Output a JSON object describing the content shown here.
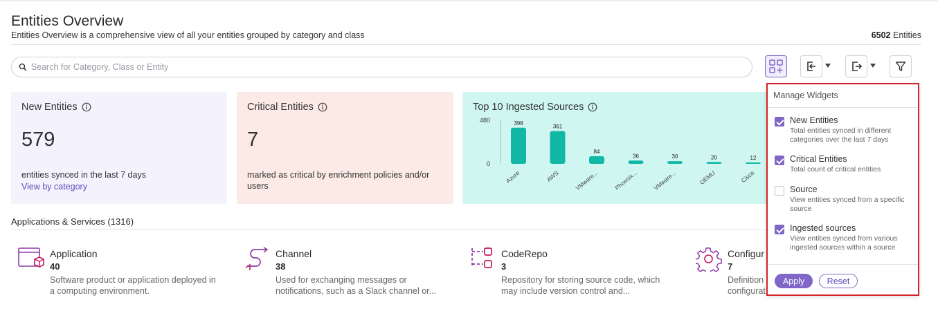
{
  "header": {
    "title": "Entities Overview",
    "subtitle": "Entities Overview is a comprehensive view of all your entities grouped by category and class",
    "entity_count": "6502",
    "entity_count_label": "Entities"
  },
  "search": {
    "placeholder": "Search for Category, Class or Entity"
  },
  "toolbar": {
    "icons": [
      "manage-widgets-icon",
      "import-icon",
      "export-icon",
      "filter-icon"
    ]
  },
  "cards": {
    "new_entities": {
      "title": "New Entities",
      "value": "579",
      "desc": "entities synced in the last 7 days",
      "link": "View by category",
      "bg": "#f4f2fd"
    },
    "critical_entities": {
      "title": "Critical Entities",
      "value": "7",
      "desc": "marked as critical by enrichment policies and/or users",
      "bg": "#fbeae5"
    },
    "top_sources": {
      "title": "Top 10 Ingested Sources",
      "bg": "#cff6f0"
    }
  },
  "chart_data": {
    "type": "bar",
    "categories": [
      "Azure",
      "AWS",
      "VMware...",
      "Phoenix...",
      "VMware...",
      "OEMU",
      "Cisco"
    ],
    "values": [
      398,
      361,
      84,
      36,
      30,
      20,
      12
    ],
    "value_labels": [
      "398",
      "361",
      "84",
      "36",
      "30",
      "20",
      "12"
    ],
    "yticks": [
      "480",
      "0"
    ],
    "ylim": [
      0,
      480
    ],
    "color": "#12b8a6"
  },
  "section": {
    "title": "Applications & Services (1316)"
  },
  "classes": [
    {
      "name": "Application",
      "count": "40",
      "desc": "Software product or application deployed in a computing environment."
    },
    {
      "name": "Channel",
      "count": "38",
      "desc": "Used for exchanging messages or notifications, such as a Slack channel or..."
    },
    {
      "name": "CodeRepo",
      "count": "3",
      "desc": "Repository for storing source code, which may include version control and..."
    },
    {
      "name": "Configur",
      "count": "7",
      "desc": "Definition configurat"
    }
  ],
  "manage_widgets": {
    "title": "Manage Widgets",
    "items": [
      {
        "label": "New Entities",
        "desc": "Total entities synced in different categories over the last 7 days",
        "checked": true
      },
      {
        "label": "Critical Entities",
        "desc": "Total count of critical entities",
        "checked": true
      },
      {
        "label": "Source",
        "desc": "View entities synced from a specific source",
        "checked": false
      },
      {
        "label": "Ingested sources",
        "desc": "View entities synced from various ingested sources within a source",
        "checked": true
      }
    ],
    "apply_label": "Apply",
    "reset_label": "Reset"
  },
  "colors": {
    "accent": "#7f66c7",
    "highlight_border": "#d32228",
    "icon_purple": "#8e3aa8",
    "icon_pink": "#c2185b"
  }
}
